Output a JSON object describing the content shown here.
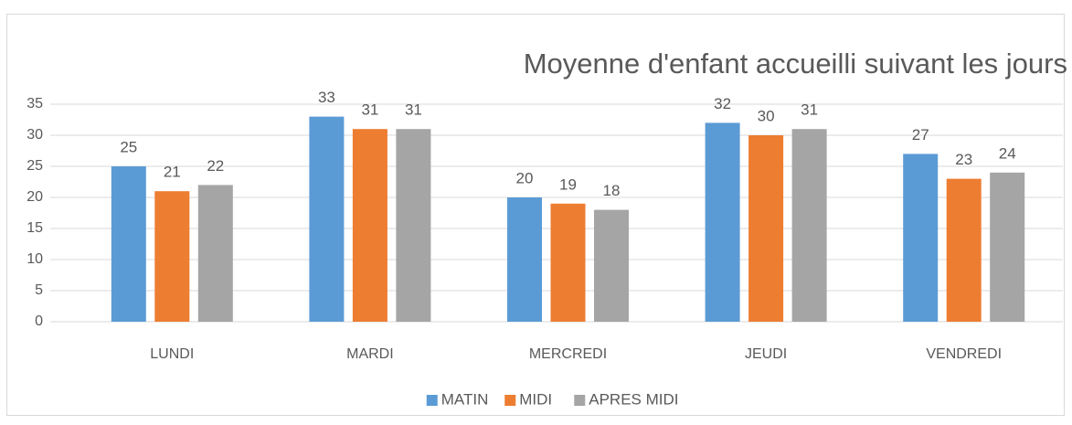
{
  "chart_data": {
    "type": "bar",
    "title": "Moyenne d'enfant accueilli suivant les jours",
    "categories": [
      "LUNDI",
      "MARDI",
      "MERCREDI",
      "JEUDI",
      "VENDREDI"
    ],
    "series": [
      {
        "name": "MATIN",
        "color": "#5b9bd5",
        "values": [
          25,
          33,
          20,
          32,
          27
        ]
      },
      {
        "name": "MIDI",
        "color": "#ed7d31",
        "values": [
          21,
          31,
          19,
          30,
          23
        ]
      },
      {
        "name": "APRES MIDI",
        "color": "#a5a5a5",
        "values": [
          22,
          31,
          18,
          31,
          24
        ]
      }
    ],
    "ylim": [
      0,
      35
    ],
    "yticks": [
      0,
      5,
      10,
      15,
      20,
      25,
      30,
      35
    ],
    "grid": true,
    "legend": "bottom"
  }
}
